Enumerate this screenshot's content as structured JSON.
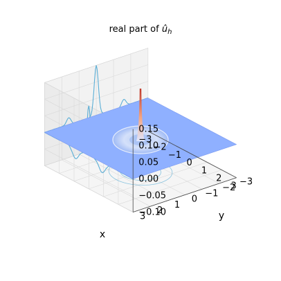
{
  "chart_data": {
    "type": "surface3d",
    "title": "real part of û_h",
    "title_prefix": "real part of ",
    "title_symbol": "û",
    "title_subscript": "h",
    "xlabel": "x",
    "ylabel": "y",
    "x_ticks": [
      "−3",
      "−2",
      "−1",
      "0",
      "1",
      "2",
      "3"
    ],
    "y_ticks": [
      "−3",
      "−2",
      "−1",
      "0",
      "1",
      "2",
      "3"
    ],
    "z_ticks": [
      "−0.10",
      "−0.05",
      "0.00",
      "0.05",
      "0.10",
      "0.15"
    ],
    "xlim": [
      -3,
      3
    ],
    "ylim": [
      -3,
      3
    ],
    "zlim": [
      -0.1,
      0.15
    ],
    "surface": {
      "colormap": "coolwarm",
      "baseline_value": 0.0,
      "peak": {
        "x": 0,
        "y": 0,
        "z": 0.15
      },
      "ring_value": -0.03
    },
    "projections": {
      "xz_wall": "contour",
      "yz_wall": "contour",
      "floor": "contour"
    },
    "grid": true
  },
  "colors": {
    "plane": "#8fb0ff",
    "plane_edge": "#7a99f0",
    "pane": "#f2f2f2",
    "pane_grid": "#d9d9d9",
    "contour": "#5aaed6",
    "peak_top": "#c0392b",
    "peak_mid": "#f4a582",
    "ring": "#c9d8f7"
  }
}
